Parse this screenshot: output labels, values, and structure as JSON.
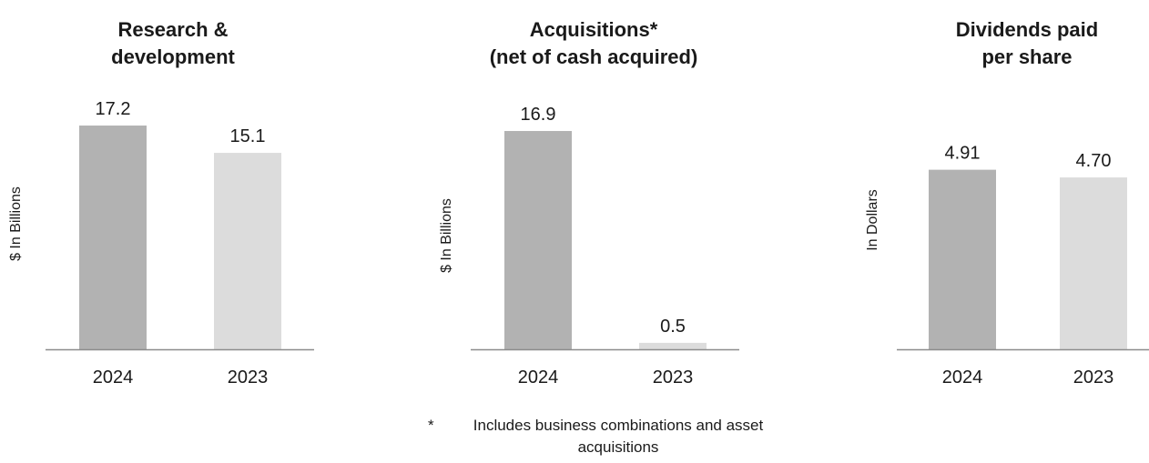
{
  "chart_data": [
    {
      "type": "bar",
      "title_lines": [
        "Research &",
        "development"
      ],
      "ylabel": "$ In Billions",
      "categories": [
        "2024",
        "2023"
      ],
      "values": [
        17.2,
        15.1
      ],
      "value_labels": [
        "17.2",
        "15.1"
      ],
      "colors": [
        "#b2b2b2",
        "#dcdcdc"
      ],
      "ylim": [
        0,
        18.5
      ]
    },
    {
      "type": "bar",
      "title_lines": [
        "Acquisitions*",
        "(net of cash acquired)"
      ],
      "ylabel": "$ In Billions",
      "categories": [
        "2024",
        "2023"
      ],
      "values": [
        16.9,
        0.5
      ],
      "value_labels": [
        "16.9",
        "0.5"
      ],
      "colors": [
        "#b2b2b2",
        "#dcdcdc"
      ],
      "ylim": [
        0,
        18.5
      ]
    },
    {
      "type": "bar",
      "title_lines": [
        "Dividends paid",
        "per share"
      ],
      "ylabel": "In Dollars",
      "categories": [
        "2024",
        "2023"
      ],
      "values": [
        4.91,
        4.7
      ],
      "value_labels": [
        "4.91",
        "4.70"
      ],
      "colors": [
        "#b2b2b2",
        "#dcdcdc"
      ],
      "ylim": [
        0,
        7.25
      ]
    }
  ],
  "footnote": {
    "mark": "*",
    "text": "Includes business combinations and asset acquisitions"
  }
}
